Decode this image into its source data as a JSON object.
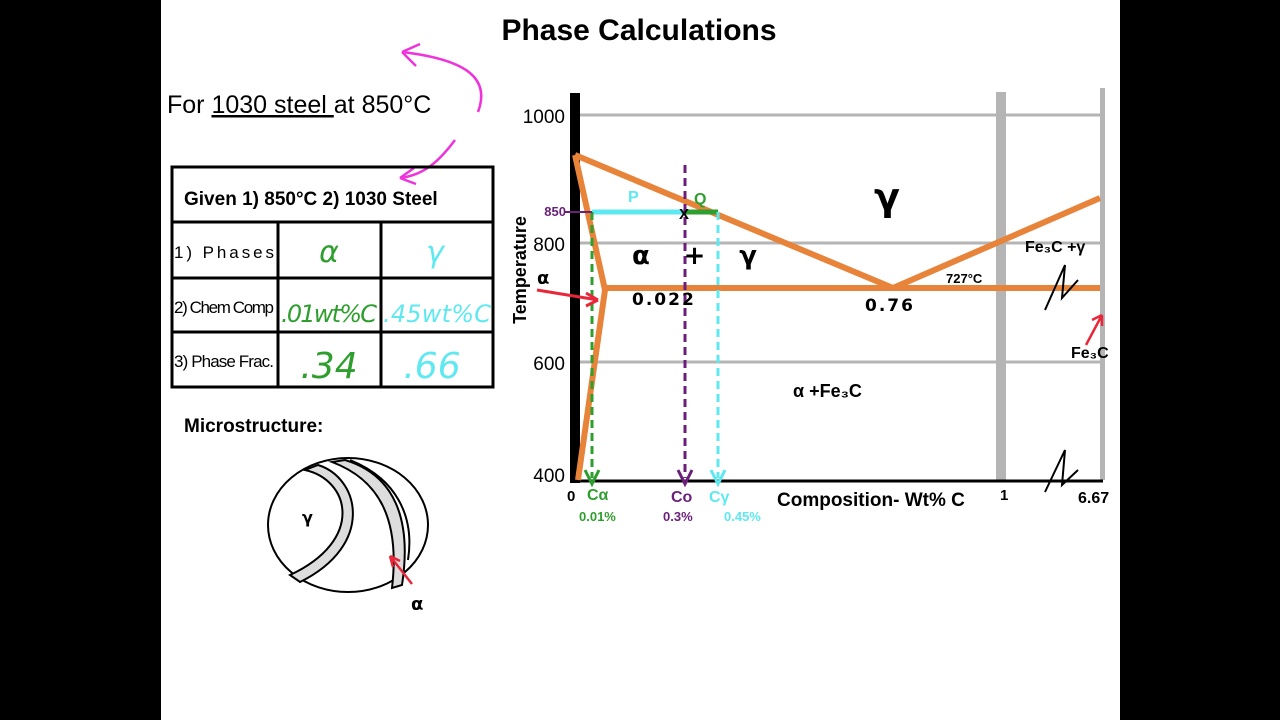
{
  "title": "Phase Calculations",
  "prompt": {
    "prefix": "For ",
    "steel": "1030 steel ",
    "suffix": "at 850°C"
  },
  "table": {
    "header": "Given 1) 850°C  2) 1030 Steel",
    "rows": [
      {
        "label": "1) Phases",
        "a": "α",
        "b": "γ"
      },
      {
        "label": "2) Chem Comp",
        "a": ".01wt%C",
        "b": ".45wt%C"
      },
      {
        "label": "3) Phase Frac.",
        "a": ".34",
        "b": ".66"
      }
    ]
  },
  "microstructure": {
    "label": "Microstructure:",
    "gamma": "γ",
    "alpha": "α"
  },
  "diagram": {
    "y_axis_label": "Temperature",
    "y_ticks": [
      "1000",
      "800",
      "600",
      "400"
    ],
    "temp_marker": "850",
    "x_axis_label": "Composition- Wt% C",
    "x_ticks": [
      "0",
      "1",
      "6.67"
    ],
    "regions": {
      "gamma": "γ",
      "alpha_gamma": "α  +  γ",
      "alpha_fe3c": "α +Fe₃C",
      "fe3c_gamma": "Fe₃C +γ",
      "fe3c": "Fe₃C",
      "alpha": "α"
    },
    "labels": {
      "p": "P",
      "q": "Q",
      "x": "X",
      "eutectoid_temp": "727°C",
      "c_022": "0.022",
      "c_076": "0.76"
    },
    "markers": [
      {
        "symbol": "Cα",
        "value": "0.01%",
        "color": "#2e9e2e"
      },
      {
        "symbol": "Co",
        "value": "0.3%",
        "color": "#6a1f7a"
      },
      {
        "symbol": "Cγ",
        "value": "0.45%",
        "color": "#5ee8f0"
      }
    ]
  },
  "colors": {
    "orange": "#e8833a",
    "green": "#2e9e2e",
    "purple": "#6a1f7a",
    "cyan": "#5ee8f0",
    "magenta": "#ee33dd",
    "red": "#e8283a"
  }
}
